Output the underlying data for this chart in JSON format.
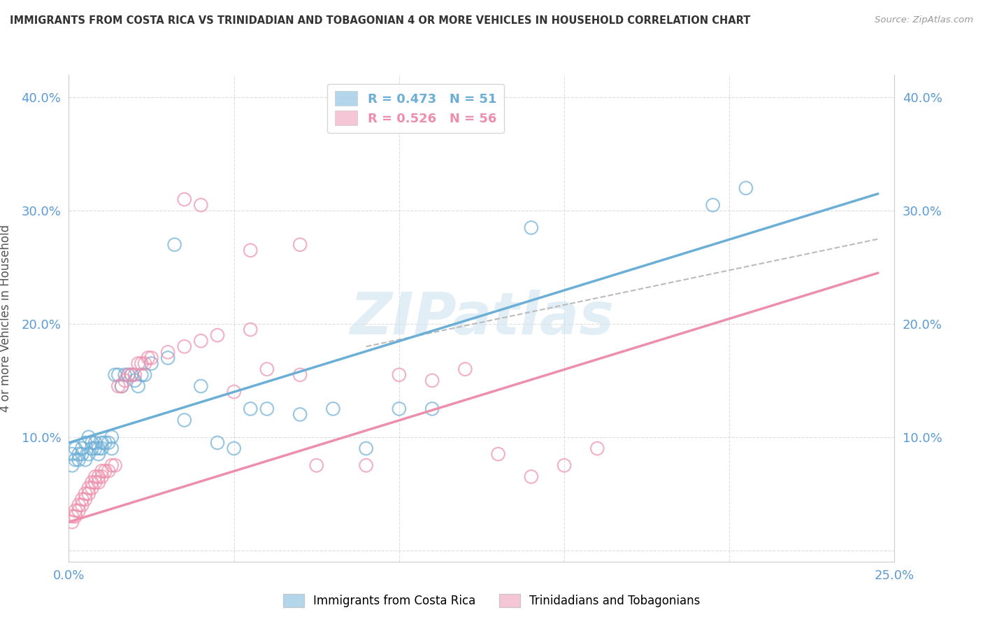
{
  "title": "IMMIGRANTS FROM COSTA RICA VS TRINIDADIAN AND TOBAGONIAN 4 OR MORE VEHICLES IN HOUSEHOLD CORRELATION CHART",
  "source": "Source: ZipAtlas.com",
  "ylabel": "4 or more Vehicles in Household",
  "xlim": [
    0.0,
    0.25
  ],
  "ylim": [
    -0.01,
    0.42
  ],
  "legend_entries": [
    {
      "label": "R = 0.473   N = 51",
      "color": "#6baed6"
    },
    {
      "label": "R = 0.526   N = 56",
      "color": "#ed8fac"
    }
  ],
  "scatter_blue": [
    [
      0.001,
      0.085
    ],
    [
      0.001,
      0.075
    ],
    [
      0.002,
      0.09
    ],
    [
      0.002,
      0.08
    ],
    [
      0.003,
      0.08
    ],
    [
      0.003,
      0.085
    ],
    [
      0.004,
      0.09
    ],
    [
      0.004,
      0.085
    ],
    [
      0.005,
      0.095
    ],
    [
      0.005,
      0.08
    ],
    [
      0.006,
      0.1
    ],
    [
      0.006,
      0.085
    ],
    [
      0.007,
      0.095
    ],
    [
      0.007,
      0.09
    ],
    [
      0.008,
      0.09
    ],
    [
      0.008,
      0.095
    ],
    [
      0.009,
      0.085
    ],
    [
      0.009,
      0.09
    ],
    [
      0.01,
      0.09
    ],
    [
      0.01,
      0.095
    ],
    [
      0.011,
      0.095
    ],
    [
      0.012,
      0.095
    ],
    [
      0.013,
      0.1
    ],
    [
      0.013,
      0.09
    ],
    [
      0.014,
      0.155
    ],
    [
      0.015,
      0.155
    ],
    [
      0.016,
      0.145
    ],
    [
      0.017,
      0.155
    ],
    [
      0.018,
      0.155
    ],
    [
      0.019,
      0.155
    ],
    [
      0.02,
      0.15
    ],
    [
      0.021,
      0.145
    ],
    [
      0.022,
      0.155
    ],
    [
      0.023,
      0.155
    ],
    [
      0.025,
      0.165
    ],
    [
      0.03,
      0.17
    ],
    [
      0.04,
      0.145
    ],
    [
      0.045,
      0.095
    ],
    [
      0.05,
      0.09
    ],
    [
      0.055,
      0.125
    ],
    [
      0.06,
      0.125
    ],
    [
      0.07,
      0.12
    ],
    [
      0.08,
      0.125
    ],
    [
      0.09,
      0.09
    ],
    [
      0.1,
      0.125
    ],
    [
      0.11,
      0.125
    ],
    [
      0.035,
      0.115
    ],
    [
      0.032,
      0.27
    ],
    [
      0.14,
      0.285
    ],
    [
      0.195,
      0.305
    ],
    [
      0.205,
      0.32
    ]
  ],
  "scatter_pink": [
    [
      0.001,
      0.03
    ],
    [
      0.001,
      0.025
    ],
    [
      0.002,
      0.035
    ],
    [
      0.002,
      0.03
    ],
    [
      0.003,
      0.04
    ],
    [
      0.003,
      0.035
    ],
    [
      0.004,
      0.04
    ],
    [
      0.004,
      0.045
    ],
    [
      0.005,
      0.045
    ],
    [
      0.005,
      0.05
    ],
    [
      0.006,
      0.05
    ],
    [
      0.006,
      0.055
    ],
    [
      0.007,
      0.055
    ],
    [
      0.007,
      0.06
    ],
    [
      0.008,
      0.06
    ],
    [
      0.008,
      0.065
    ],
    [
      0.009,
      0.065
    ],
    [
      0.009,
      0.06
    ],
    [
      0.01,
      0.065
    ],
    [
      0.01,
      0.07
    ],
    [
      0.011,
      0.07
    ],
    [
      0.012,
      0.07
    ],
    [
      0.013,
      0.075
    ],
    [
      0.014,
      0.075
    ],
    [
      0.015,
      0.145
    ],
    [
      0.016,
      0.145
    ],
    [
      0.017,
      0.15
    ],
    [
      0.018,
      0.155
    ],
    [
      0.019,
      0.155
    ],
    [
      0.02,
      0.155
    ],
    [
      0.021,
      0.165
    ],
    [
      0.022,
      0.165
    ],
    [
      0.023,
      0.165
    ],
    [
      0.024,
      0.17
    ],
    [
      0.025,
      0.17
    ],
    [
      0.03,
      0.175
    ],
    [
      0.035,
      0.18
    ],
    [
      0.04,
      0.185
    ],
    [
      0.045,
      0.19
    ],
    [
      0.05,
      0.14
    ],
    [
      0.055,
      0.195
    ],
    [
      0.06,
      0.16
    ],
    [
      0.07,
      0.155
    ],
    [
      0.075,
      0.075
    ],
    [
      0.09,
      0.075
    ],
    [
      0.1,
      0.155
    ],
    [
      0.11,
      0.15
    ],
    [
      0.12,
      0.16
    ],
    [
      0.13,
      0.085
    ],
    [
      0.14,
      0.065
    ],
    [
      0.15,
      0.075
    ],
    [
      0.16,
      0.09
    ],
    [
      0.035,
      0.31
    ],
    [
      0.04,
      0.305
    ],
    [
      0.055,
      0.265
    ],
    [
      0.07,
      0.27
    ]
  ],
  "blue_line": [
    [
      0.0,
      0.095
    ],
    [
      0.245,
      0.315
    ]
  ],
  "pink_line": [
    [
      0.0,
      0.025
    ],
    [
      0.245,
      0.245
    ]
  ],
  "dash_line": [
    [
      0.09,
      0.18
    ],
    [
      0.245,
      0.275
    ]
  ],
  "blue_color": "#6baed6",
  "pink_color": "#ed8fac",
  "dash_color": "#bbbbbb",
  "watermark": "ZIPatlas",
  "background_color": "#ffffff",
  "grid_color": "#dddddd"
}
